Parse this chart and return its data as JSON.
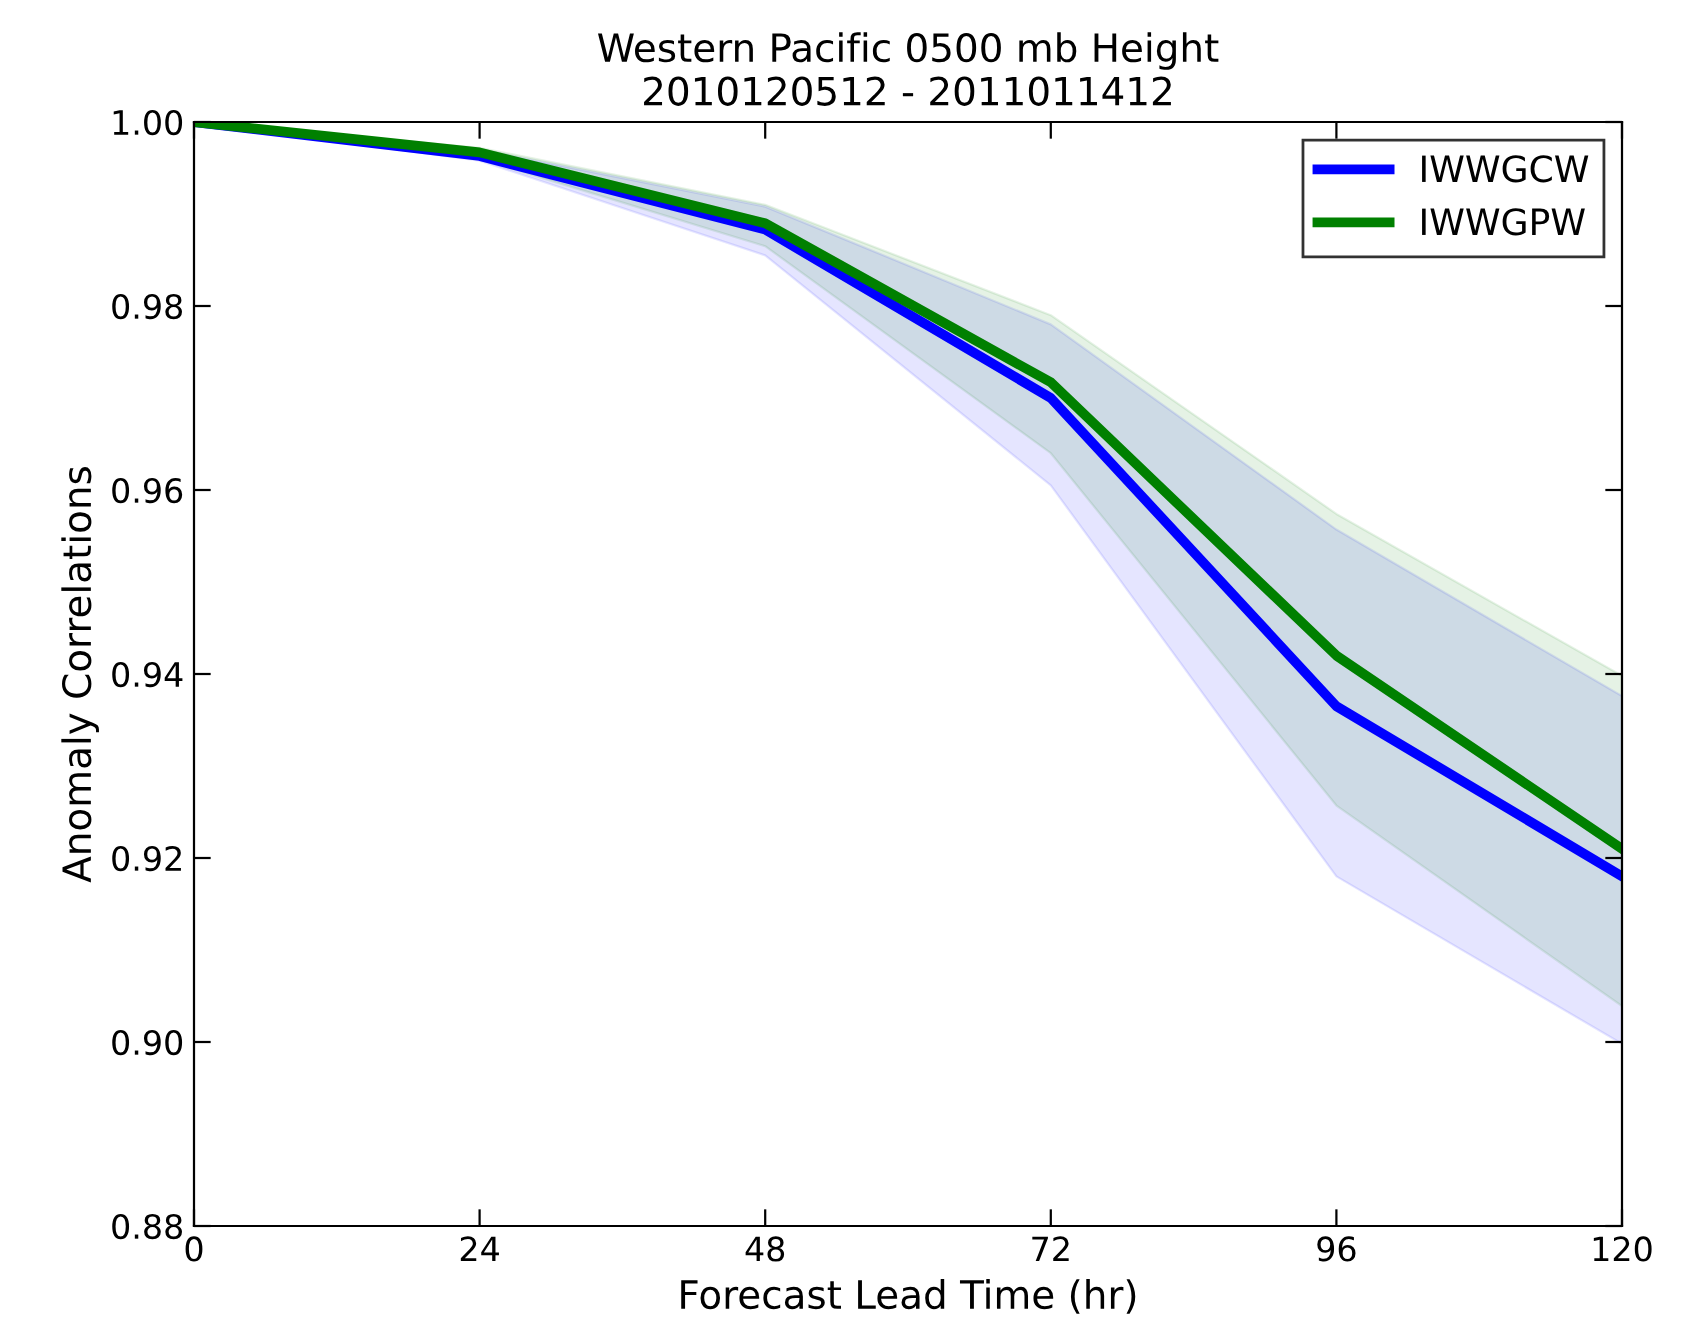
{
  "chart_data": {
    "type": "line",
    "title": "Western Pacific 0500 mb Height\n2010120512 - 2011011412",
    "xlabel": "Forecast Lead Time (hr)",
    "ylabel": "Anomaly Correlations",
    "x": [
      0,
      24,
      48,
      72,
      96,
      120
    ],
    "series": [
      {
        "name": "IWWGCW",
        "color": "#0000ff",
        "values": [
          1.0,
          0.9963,
          0.9883,
          0.97,
          0.9365,
          0.918
        ],
        "lower": [
          1.0,
          0.9958,
          0.9855,
          0.9605,
          0.918,
          0.8998
        ],
        "upper": [
          1.0,
          0.997,
          0.9908,
          0.978,
          0.9557,
          0.9376
        ]
      },
      {
        "name": "IWWGPW",
        "color": "#008000",
        "values": [
          1.0,
          0.9967,
          0.989,
          0.9717,
          0.942,
          0.921
        ],
        "lower": [
          1.0,
          0.996,
          0.9865,
          0.964,
          0.9257,
          0.9039
        ],
        "upper": [
          1.0,
          0.9972,
          0.991,
          0.979,
          0.9574,
          0.9398
        ]
      }
    ],
    "xlim": [
      0,
      120
    ],
    "xticks": [
      0,
      24,
      48,
      72,
      96,
      120
    ],
    "ylim": [
      0.88,
      1.0
    ],
    "yticks": [
      {
        "value": 0.88,
        "label": "0.88"
      },
      {
        "value": 0.9,
        "label": "0.90"
      },
      {
        "value": 0.92,
        "label": "0.92"
      },
      {
        "value": 0.94,
        "label": "0.94"
      },
      {
        "value": 0.96,
        "label": "0.96"
      },
      {
        "value": 0.98,
        "label": "0.98"
      },
      {
        "value": 1.0,
        "label": "1.00"
      }
    ],
    "legend": "top right",
    "grid": false
  }
}
